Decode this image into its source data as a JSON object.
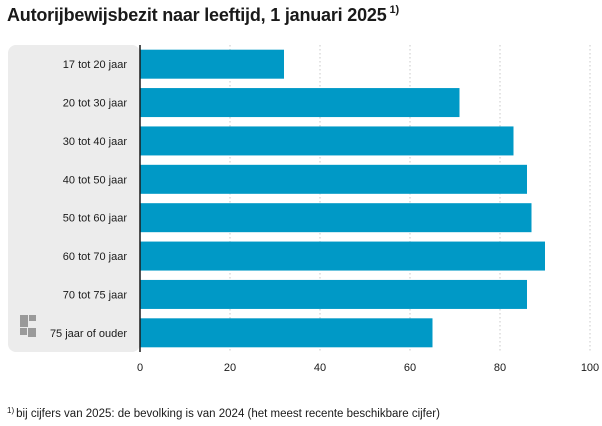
{
  "title": {
    "text": "Autorijbewijsbezit naar leeftijd, 1 januari 2025",
    "footnote_mark": "1)"
  },
  "footnote": {
    "mark": "1)",
    "text": "bij cijfers van 2025: de bevolking is van 2024 (het meest recente beschikbare cijfer)"
  },
  "logo_icon": "cbs-logo-icon",
  "colors": {
    "bar": "#0099c6",
    "panel": "#ececec",
    "grid": "#c8c8c8",
    "axis": "#1a1a1a"
  },
  "chart_data": {
    "type": "bar",
    "orientation": "horizontal",
    "title": "Autorijbewijsbezit naar leeftijd, 1 januari 2025",
    "categories": [
      "17 tot 20 jaar",
      "20 tot 30 jaar",
      "30 tot 40 jaar",
      "40 tot 50 jaar",
      "50 tot 60 jaar",
      "60 tot 70 jaar",
      "70 tot 75 jaar",
      "75 jaar of ouder"
    ],
    "values": [
      32,
      71,
      83,
      86,
      87,
      90,
      86,
      65
    ],
    "xlim": [
      0,
      100
    ],
    "xticks": [
      "0",
      "20",
      "40",
      "60",
      "80",
      "100"
    ],
    "xlabel": "",
    "ylabel": "",
    "grid": true,
    "legend": "none"
  }
}
